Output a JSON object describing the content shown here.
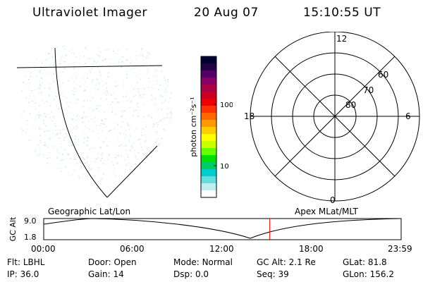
{
  "header": {
    "instrument": "Ultraviolet Imager",
    "date": "20 Aug 07",
    "time": "15:10:55 UT"
  },
  "colorbar": {
    "label": "photon cm⁻²s⁻¹",
    "ticks": [
      "100",
      "10"
    ],
    "colors": [
      "#000033",
      "#220044",
      "#550066",
      "#880066",
      "#aa0044",
      "#cc0022",
      "#ee0000",
      "#ff3300",
      "#ff6600",
      "#ff9900",
      "#ffcc00",
      "#ffff00",
      "#ccff00",
      "#66ff00",
      "#00dd00",
      "#00cc66",
      "#00cccc",
      "#66dddd",
      "#bbeeee",
      "#ffffff"
    ]
  },
  "polar": {
    "mlt_labels": {
      "top": "12",
      "bottom": "0",
      "left": "18",
      "right": "6"
    },
    "lat_labels": [
      "60",
      "70",
      "80"
    ]
  },
  "timeline": {
    "left_title": "Geographic Lat/Lon",
    "right_title": "Apex MLat/MLT",
    "y_axis_label": "GC Alt",
    "y_ticks": [
      "9.0",
      "1.8"
    ],
    "x_ticks": [
      "00:00",
      "06:00",
      "12:00",
      "18:00",
      "23:59"
    ],
    "current_time": "15:10",
    "marker_color": "#ff0000"
  },
  "info": {
    "row1": [
      {
        "label": "Flt:",
        "value": "LBHL"
      },
      {
        "label": "Door:",
        "value": "Open"
      },
      {
        "label": "Mode:",
        "value": "Normal"
      },
      {
        "label": "GC Alt:",
        "value": "2.1 Re"
      },
      {
        "label": "GLat:",
        "value": "81.8"
      }
    ],
    "row2": [
      {
        "label": "IP:",
        "value": "36.0"
      },
      {
        "label": "Gain:",
        "value": "14"
      },
      {
        "label": "Dsp:",
        "value": "0.0"
      },
      {
        "label": "Seq:",
        "value": "39"
      },
      {
        "label": "GLon:",
        "value": "156.2"
      }
    ]
  }
}
